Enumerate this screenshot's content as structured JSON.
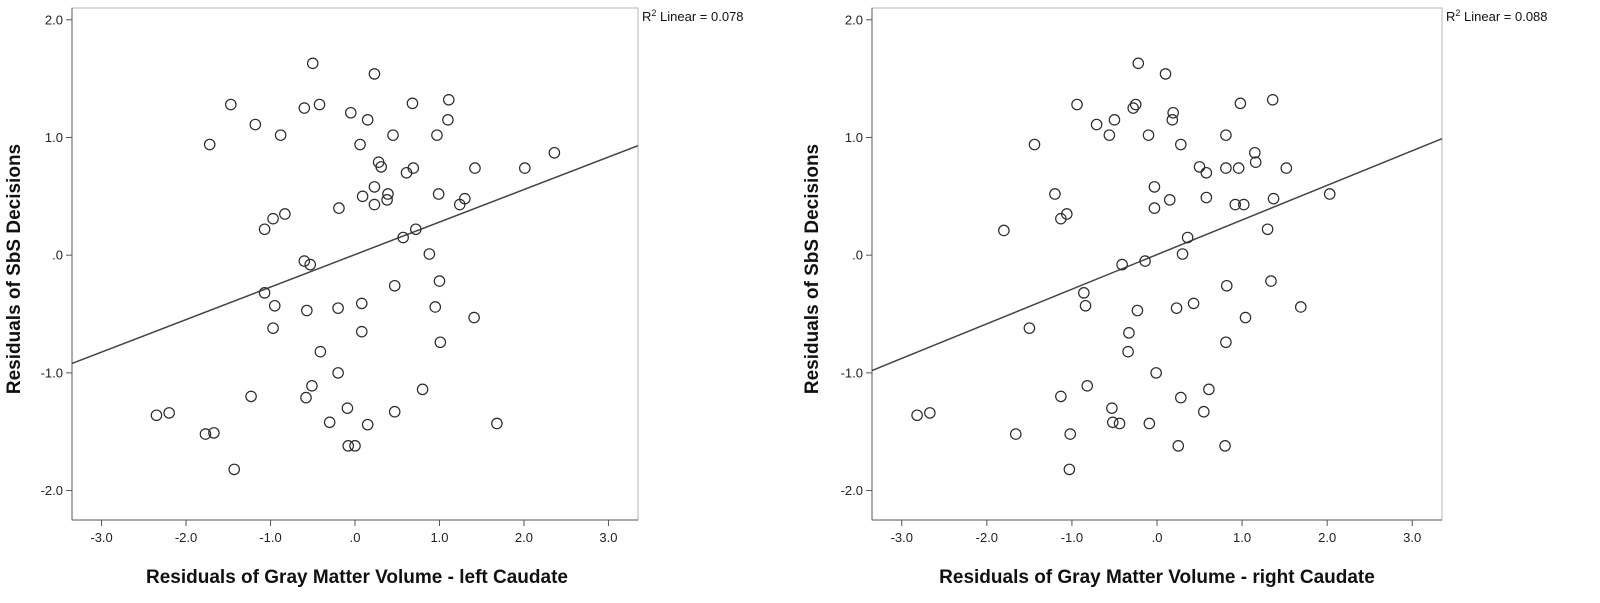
{
  "chart_data": [
    {
      "type": "scatter",
      "xlabel": "Residuals of Gray Matter Volume - left Caudate",
      "ylabel": "Residuals of SbS Decisions",
      "r2_prefix": "R",
      "r2_sup": "2",
      "r2_text": " Linear = 0.078",
      "xlim": [
        -3.35,
        3.35
      ],
      "ylim": [
        -2.25,
        2.1
      ],
      "x_ticks": [
        -3.0,
        -2.0,
        -1.0,
        0.0,
        1.0,
        2.0,
        3.0
      ],
      "x_tick_labels": [
        "-3.0",
        "-2.0",
        "-1.0",
        ".0",
        "1.0",
        "2.0",
        "3.0"
      ],
      "y_ticks": [
        -2.0,
        -1.0,
        0.0,
        1.0,
        2.0
      ],
      "y_tick_labels": [
        "-2.0",
        "-1.0",
        ".0",
        "1.0",
        "2.0"
      ],
      "fit_line": {
        "x": [
          -3.35,
          3.35
        ],
        "y": [
          -0.92,
          0.93
        ]
      },
      "points": [
        [
          -0.5,
          1.63
        ],
        [
          0.23,
          1.54
        ],
        [
          -1.47,
          1.28
        ],
        [
          -0.42,
          1.28
        ],
        [
          -0.6,
          1.25
        ],
        [
          0.68,
          1.29
        ],
        [
          1.11,
          1.32
        ],
        [
          -1.18,
          1.11
        ],
        [
          -0.05,
          1.21
        ],
        [
          0.15,
          1.15
        ],
        [
          1.1,
          1.15
        ],
        [
          -0.88,
          1.02
        ],
        [
          0.45,
          1.02
        ],
        [
          0.97,
          1.02
        ],
        [
          -1.72,
          0.94
        ],
        [
          0.06,
          0.94
        ],
        [
          0.28,
          0.79
        ],
        [
          0.31,
          0.75
        ],
        [
          2.36,
          0.87
        ],
        [
          0.61,
          0.7
        ],
        [
          0.69,
          0.74
        ],
        [
          1.42,
          0.74
        ],
        [
          2.01,
          0.74
        ],
        [
          0.23,
          0.58
        ],
        [
          0.39,
          0.52
        ],
        [
          0.99,
          0.52
        ],
        [
          0.09,
          0.5
        ],
        [
          0.38,
          0.47
        ],
        [
          1.3,
          0.48
        ],
        [
          -0.19,
          0.4
        ],
        [
          0.23,
          0.43
        ],
        [
          1.24,
          0.43
        ],
        [
          -0.83,
          0.35
        ],
        [
          -0.97,
          0.31
        ],
        [
          -1.07,
          0.22
        ],
        [
          0.72,
          0.22
        ],
        [
          0.57,
          0.15
        ],
        [
          0.88,
          0.01
        ],
        [
          -0.6,
          -0.05
        ],
        [
          -0.53,
          -0.08
        ],
        [
          1.0,
          -0.22
        ],
        [
          0.47,
          -0.26
        ],
        [
          -1.07,
          -0.32
        ],
        [
          -0.95,
          -0.43
        ],
        [
          0.08,
          -0.41
        ],
        [
          0.95,
          -0.44
        ],
        [
          -0.57,
          -0.47
        ],
        [
          -0.2,
          -0.45
        ],
        [
          1.41,
          -0.53
        ],
        [
          -0.97,
          -0.62
        ],
        [
          0.08,
          -0.65
        ],
        [
          1.01,
          -0.74
        ],
        [
          -0.41,
          -0.82
        ],
        [
          -0.2,
          -1.0
        ],
        [
          -0.51,
          -1.11
        ],
        [
          0.8,
          -1.14
        ],
        [
          -1.23,
          -1.2
        ],
        [
          -0.58,
          -1.21
        ],
        [
          -0.09,
          -1.3
        ],
        [
          0.47,
          -1.33
        ],
        [
          -2.35,
          -1.36
        ],
        [
          -2.2,
          -1.34
        ],
        [
          -0.3,
          -1.42
        ],
        [
          0.15,
          -1.44
        ],
        [
          1.68,
          -1.43
        ],
        [
          -1.77,
          -1.52
        ],
        [
          -1.67,
          -1.51
        ],
        [
          -0.08,
          -1.62
        ],
        [
          0.0,
          -1.62
        ],
        [
          -1.43,
          -1.82
        ]
      ]
    },
    {
      "type": "scatter",
      "xlabel": "Residuals of Gray Matter Volume - right Caudate",
      "ylabel": "Residuals of SbS Decisions",
      "r2_prefix": "R",
      "r2_sup": "2",
      "r2_text": " Linear = 0.088",
      "xlim": [
        -3.35,
        3.35
      ],
      "ylim": [
        -2.25,
        2.1
      ],
      "x_ticks": [
        -3.0,
        -2.0,
        -1.0,
        0.0,
        1.0,
        2.0,
        3.0
      ],
      "x_tick_labels": [
        "-3.0",
        "-2.0",
        "-1.0",
        ".0",
        "1.0",
        "2.0",
        "3.0"
      ],
      "y_ticks": [
        -2.0,
        -1.0,
        0.0,
        1.0,
        2.0
      ],
      "y_tick_labels": [
        "-2.0",
        "-1.0",
        ".0",
        "1.0",
        "2.0"
      ],
      "fit_line": {
        "x": [
          -3.35,
          3.35
        ],
        "y": [
          -0.98,
          0.99
        ]
      },
      "points": [
        [
          -0.22,
          1.63
        ],
        [
          0.1,
          1.54
        ],
        [
          1.36,
          1.32
        ],
        [
          -0.94,
          1.28
        ],
        [
          -0.25,
          1.28
        ],
        [
          -0.28,
          1.25
        ],
        [
          0.98,
          1.29
        ],
        [
          0.19,
          1.21
        ],
        [
          0.18,
          1.15
        ],
        [
          -0.5,
          1.15
        ],
        [
          -0.71,
          1.11
        ],
        [
          -0.56,
          1.02
        ],
        [
          -0.1,
          1.02
        ],
        [
          0.81,
          1.02
        ],
        [
          0.28,
          0.94
        ],
        [
          -1.44,
          0.94
        ],
        [
          1.15,
          0.87
        ],
        [
          1.16,
          0.79
        ],
        [
          0.5,
          0.75
        ],
        [
          0.96,
          0.74
        ],
        [
          0.81,
          0.74
        ],
        [
          1.52,
          0.74
        ],
        [
          0.58,
          0.7
        ],
        [
          -0.03,
          0.58
        ],
        [
          -1.2,
          0.52
        ],
        [
          0.58,
          0.49
        ],
        [
          0.15,
          0.47
        ],
        [
          1.37,
          0.48
        ],
        [
          -0.03,
          0.4
        ],
        [
          0.92,
          0.43
        ],
        [
          1.02,
          0.43
        ],
        [
          -1.06,
          0.35
        ],
        [
          -1.13,
          0.31
        ],
        [
          2.03,
          0.52
        ],
        [
          -1.8,
          0.21
        ],
        [
          1.3,
          0.22
        ],
        [
          0.36,
          0.15
        ],
        [
          0.3,
          0.01
        ],
        [
          -0.14,
          -0.05
        ],
        [
          -0.41,
          -0.08
        ],
        [
          0.82,
          -0.26
        ],
        [
          1.34,
          -0.22
        ],
        [
          -0.86,
          -0.32
        ],
        [
          -0.84,
          -0.43
        ],
        [
          0.43,
          -0.41
        ],
        [
          -0.23,
          -0.47
        ],
        [
          0.23,
          -0.45
        ],
        [
          1.69,
          -0.44
        ],
        [
          1.04,
          -0.53
        ],
        [
          -1.5,
          -0.62
        ],
        [
          -0.33,
          -0.66
        ],
        [
          0.81,
          -0.74
        ],
        [
          -0.34,
          -0.82
        ],
        [
          -0.01,
          -1.0
        ],
        [
          -0.82,
          -1.11
        ],
        [
          0.61,
          -1.14
        ],
        [
          -1.13,
          -1.2
        ],
        [
          0.28,
          -1.21
        ],
        [
          -0.53,
          -1.3
        ],
        [
          0.55,
          -1.33
        ],
        [
          -2.82,
          -1.36
        ],
        [
          -2.67,
          -1.34
        ],
        [
          -0.52,
          -1.42
        ],
        [
          -0.44,
          -1.43
        ],
        [
          -0.09,
          -1.43
        ],
        [
          -1.66,
          -1.52
        ],
        [
          -1.02,
          -1.52
        ],
        [
          0.25,
          -1.62
        ],
        [
          0.8,
          -1.62
        ],
        [
          -1.03,
          -1.82
        ]
      ]
    }
  ]
}
